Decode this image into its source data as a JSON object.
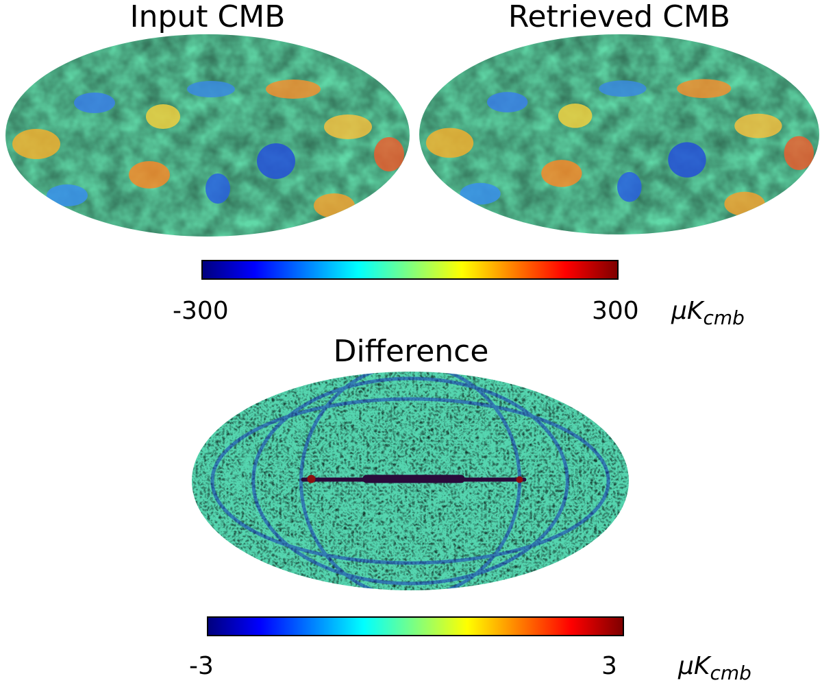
{
  "panels": {
    "input": {
      "title": "Input CMB"
    },
    "retrieved": {
      "title": "Retrieved CMB"
    },
    "difference": {
      "title": "Difference"
    }
  },
  "colorbars": {
    "top": {
      "min_label": "-300",
      "max_label": "300",
      "unit_main": "μK",
      "unit_sub": "cmb",
      "colormap": "jet",
      "range": [
        -300,
        300
      ]
    },
    "bottom": {
      "min_label": "-3",
      "max_label": "3",
      "unit_main": "μK",
      "unit_sub": "cmb",
      "colormap": "jet",
      "range": [
        -3,
        3
      ]
    }
  },
  "colors": {
    "jet_stops": [
      "#00007f",
      "#0000ff",
      "#007fff",
      "#00ffff",
      "#7fff7f",
      "#ffff00",
      "#ff7f00",
      "#ff0000",
      "#7f0000"
    ],
    "map_base": "#55d6b0",
    "galactic_line": "#2a0a3a"
  }
}
